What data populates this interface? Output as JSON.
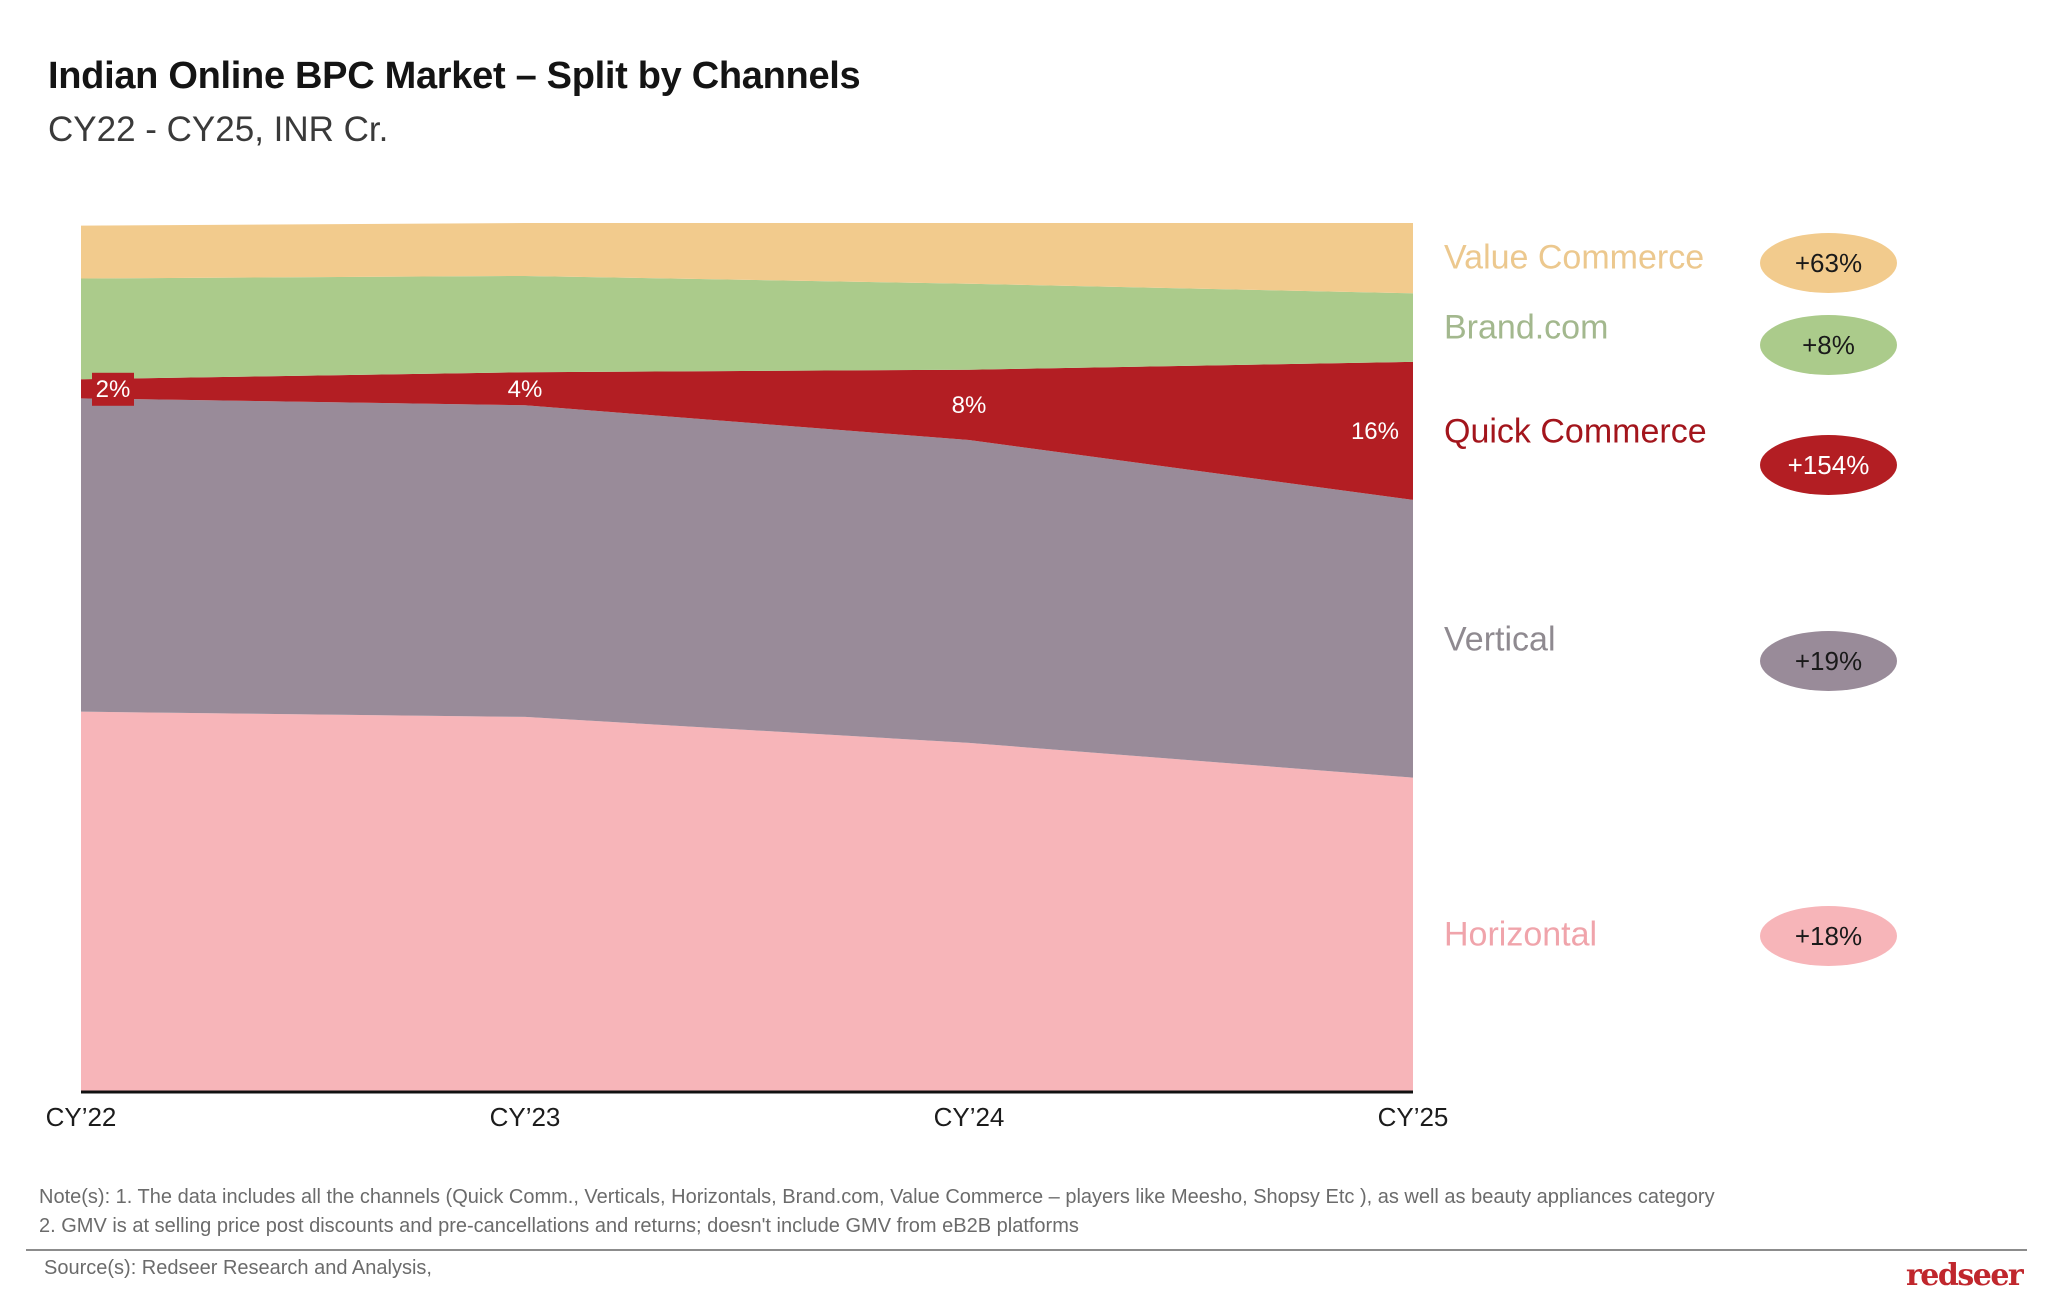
{
  "header": {
    "title": "Indian Online BPC Market – Split by Channels",
    "subtitle": "CY22 - CY25, INR Cr."
  },
  "chart_data": {
    "type": "area",
    "stacked": true,
    "normalized": "percent",
    "title": "Indian Online BPC Market – Split by Channels",
    "subtitle": "CY22 - CY25, INR Cr.",
    "xlabel": "",
    "ylabel": "",
    "x": [
      "CY’22",
      "CY’23",
      "CY’24",
      "CY’25"
    ],
    "ylim": [
      0,
      100
    ],
    "grid": false,
    "legend_position": "right",
    "series": [
      {
        "name": "Horizontal",
        "color": "#f7b5b9",
        "text_color": "#f0a4ab",
        "growth": "+18%",
        "values": [
          43.7,
          43.1,
          40.1,
          36.1
        ]
      },
      {
        "name": "Vertical",
        "color": "#998b99",
        "text_color": "#8f8a90",
        "growth": "+19%",
        "values": [
          36.1,
          35.9,
          34.9,
          32.0
        ]
      },
      {
        "name": "Quick Commerce",
        "color": "#b31e23",
        "text_color": "#a3151c",
        "growth": "+154%",
        "values": [
          2.2,
          3.8,
          8.1,
          15.9
        ],
        "data_labels": [
          "2%",
          "4%",
          "8%",
          "16%"
        ]
      },
      {
        "name": "Brand.com",
        "color": "#abcb8b",
        "text_color": "#a3b88e",
        "growth": "+8%",
        "values": [
          11.6,
          11.1,
          9.9,
          7.9
        ]
      },
      {
        "name": "Value Commerce",
        "color": "#f2cb8d",
        "text_color": "#ecc88e",
        "growth": "+63%",
        "values": [
          6.1,
          6.1,
          7.0,
          8.1
        ]
      }
    ],
    "annotations": [
      "Growth rates shown in pills next to each channel label"
    ]
  },
  "legend_order": [
    "Value Commerce",
    "Brand.com",
    "Quick Commerce",
    "Vertical",
    "Horizontal"
  ],
  "footer": {
    "note_line1": "Note(s): 1. The data includes all the channels (Quick Comm., Verticals, Horizontals, Brand.com, Value Commerce – players like Meesho, Shopsy Etc ), as well as beauty appliances category",
    "note_line2": "2. GMV is at selling price post discounts and pre-cancellations and returns; doesn't include GMV from eB2B platforms",
    "source": "Source(s): Redseer Research and Analysis,",
    "logo": "redseer"
  }
}
